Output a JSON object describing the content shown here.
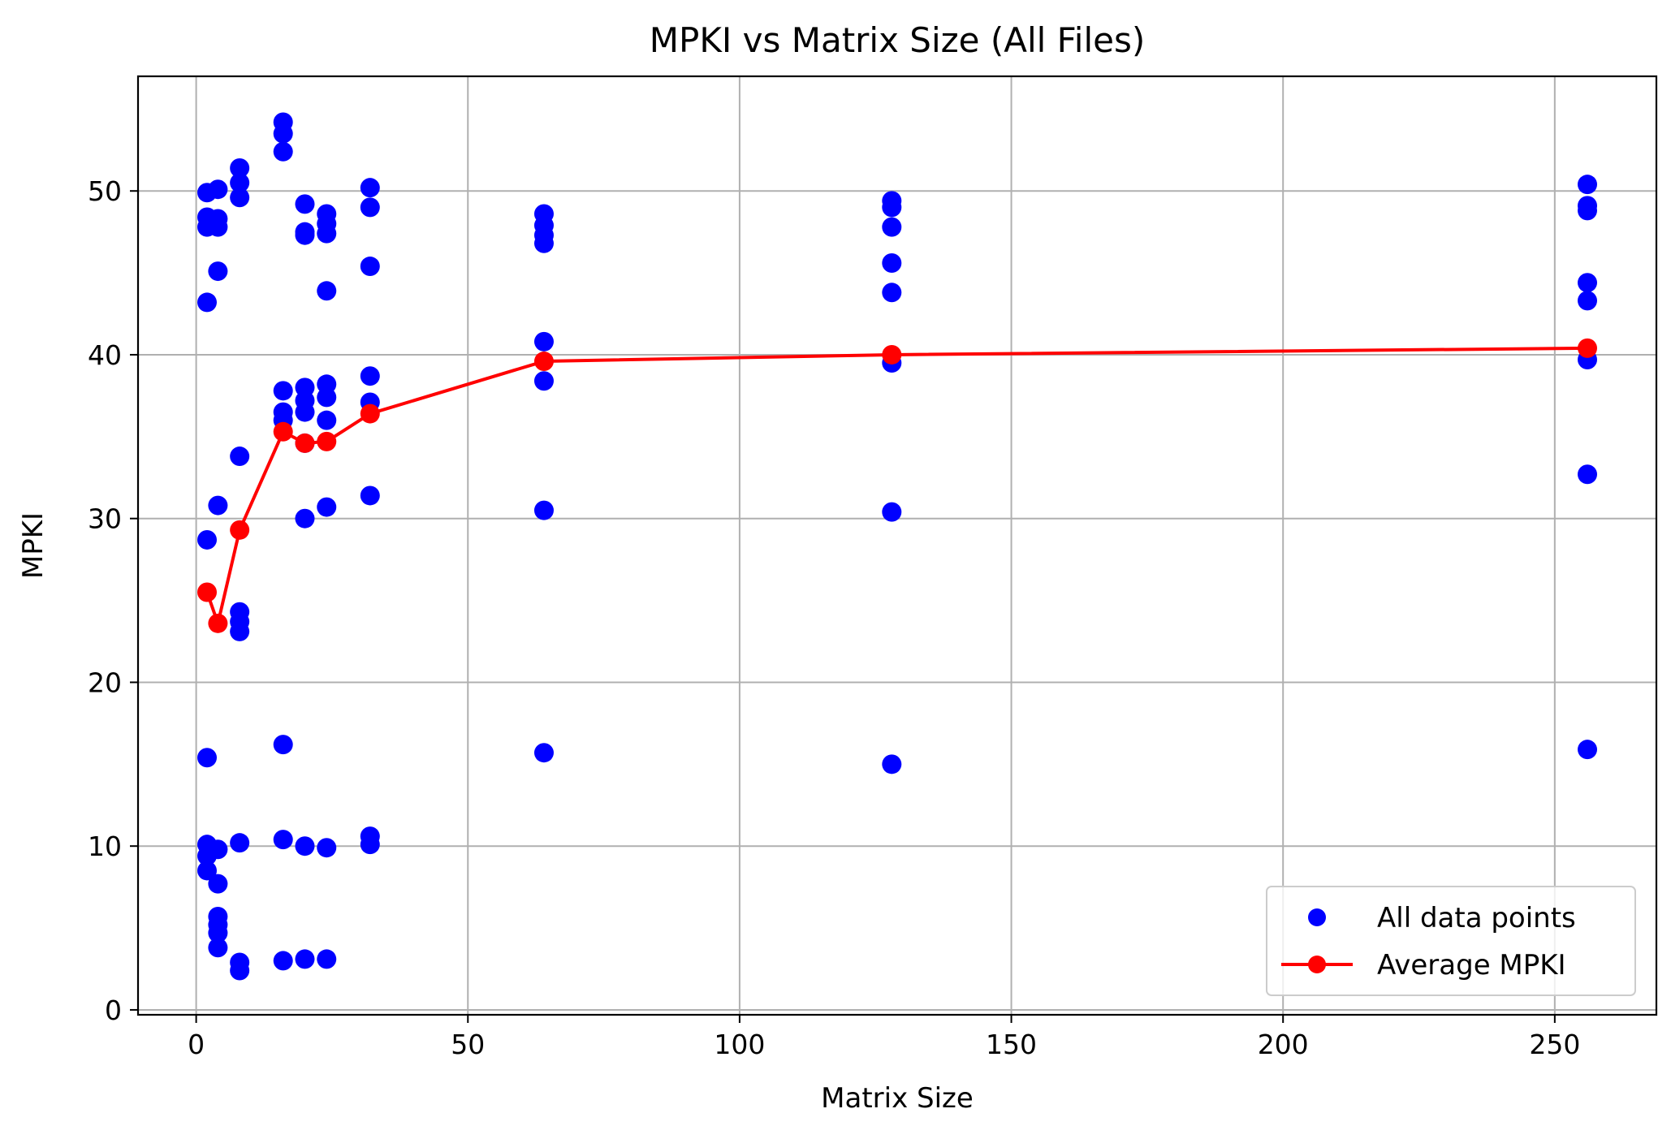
{
  "chart_data": {
    "type": "scatter",
    "title": "MPKI vs Matrix Size (All Files)",
    "xlabel": "Matrix Size",
    "ylabel": "MPKI",
    "xlim": [
      -10.7,
      268.7
    ],
    "ylim": [
      -0.3,
      57.0
    ],
    "xticks": [
      0,
      50,
      100,
      150,
      200,
      250
    ],
    "yticks": [
      0,
      10,
      20,
      30,
      40,
      50
    ],
    "grid": true,
    "legend_position": "lower-right",
    "series": [
      {
        "name": "All data points",
        "kind": "scatter",
        "color": "#0000ff",
        "points": [
          [
            2,
            49.9
          ],
          [
            2,
            48.4
          ],
          [
            2,
            47.8
          ],
          [
            2,
            43.2
          ],
          [
            2,
            28.7
          ],
          [
            2,
            15.4
          ],
          [
            2,
            10.1
          ],
          [
            2,
            9.4
          ],
          [
            2,
            8.5
          ],
          [
            4,
            50.1
          ],
          [
            4,
            48.3
          ],
          [
            4,
            47.8
          ],
          [
            4,
            45.1
          ],
          [
            4,
            30.8
          ],
          [
            4,
            9.8
          ],
          [
            4,
            7.7
          ],
          [
            4,
            5.7
          ],
          [
            4,
            5.2
          ],
          [
            4,
            4.7
          ],
          [
            4,
            3.8
          ],
          [
            8,
            51.4
          ],
          [
            8,
            50.5
          ],
          [
            8,
            49.6
          ],
          [
            8,
            33.8
          ],
          [
            8,
            24.3
          ],
          [
            8,
            23.7
          ],
          [
            8,
            23.1
          ],
          [
            8,
            10.2
          ],
          [
            8,
            2.9
          ],
          [
            8,
            2.4
          ],
          [
            16,
            54.2
          ],
          [
            16,
            53.5
          ],
          [
            16,
            52.4
          ],
          [
            16,
            37.8
          ],
          [
            16,
            36.5
          ],
          [
            16,
            36.0
          ],
          [
            16,
            16.2
          ],
          [
            16,
            10.4
          ],
          [
            16,
            3.0
          ],
          [
            20,
            49.2
          ],
          [
            20,
            47.5
          ],
          [
            20,
            47.3
          ],
          [
            20,
            38.0
          ],
          [
            20,
            37.2
          ],
          [
            20,
            36.5
          ],
          [
            20,
            34.6
          ],
          [
            20,
            30.0
          ],
          [
            20,
            10.0
          ],
          [
            20,
            3.1
          ],
          [
            24,
            48.6
          ],
          [
            24,
            48.0
          ],
          [
            24,
            47.4
          ],
          [
            24,
            43.9
          ],
          [
            24,
            38.2
          ],
          [
            24,
            37.4
          ],
          [
            24,
            36.0
          ],
          [
            24,
            30.7
          ],
          [
            24,
            9.9
          ],
          [
            24,
            3.1
          ],
          [
            32,
            50.2
          ],
          [
            32,
            49.0
          ],
          [
            32,
            45.4
          ],
          [
            32,
            38.7
          ],
          [
            32,
            37.1
          ],
          [
            32,
            31.4
          ],
          [
            32,
            10.6
          ],
          [
            32,
            10.1
          ],
          [
            64,
            48.6
          ],
          [
            64,
            47.9
          ],
          [
            64,
            47.3
          ],
          [
            64,
            46.8
          ],
          [
            64,
            40.8
          ],
          [
            64,
            38.4
          ],
          [
            64,
            30.5
          ],
          [
            64,
            15.7
          ],
          [
            128,
            49.4
          ],
          [
            128,
            49.0
          ],
          [
            128,
            47.8
          ],
          [
            128,
            45.6
          ],
          [
            128,
            43.8
          ],
          [
            128,
            39.5
          ],
          [
            128,
            30.4
          ],
          [
            128,
            15.0
          ],
          [
            256,
            50.4
          ],
          [
            256,
            49.1
          ],
          [
            256,
            48.8
          ],
          [
            256,
            44.4
          ],
          [
            256,
            43.3
          ],
          [
            256,
            39.7
          ],
          [
            256,
            32.7
          ],
          [
            256,
            15.9
          ]
        ]
      },
      {
        "name": "Average MPKI",
        "kind": "line",
        "color": "#ff0000",
        "points": [
          [
            2,
            25.5
          ],
          [
            4,
            23.6
          ],
          [
            8,
            29.3
          ],
          [
            16,
            35.3
          ],
          [
            20,
            34.6
          ],
          [
            24,
            34.7
          ],
          [
            32,
            36.4
          ],
          [
            64,
            39.6
          ],
          [
            128,
            40.0
          ],
          [
            256,
            40.4
          ]
        ]
      }
    ]
  }
}
